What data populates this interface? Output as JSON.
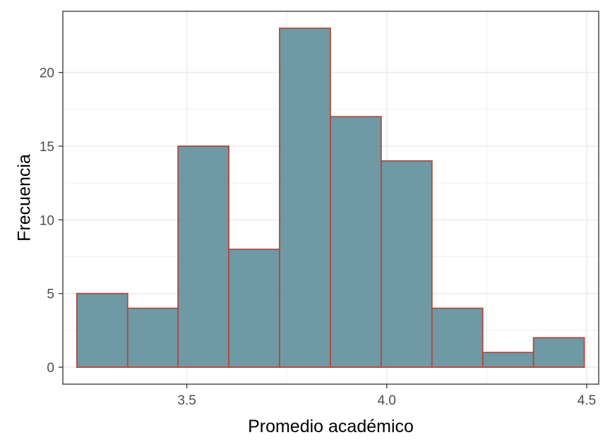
{
  "chart_data": {
    "type": "bar",
    "subtype": "histogram",
    "title": "",
    "xlabel": "Promedio académico",
    "ylabel": "Frecuencia",
    "bins": [
      {
        "start": 3.225,
        "end": 3.352,
        "count": 5
      },
      {
        "start": 3.352,
        "end": 3.478,
        "count": 4
      },
      {
        "start": 3.478,
        "end": 3.605,
        "count": 15
      },
      {
        "start": 3.605,
        "end": 3.732,
        "count": 8
      },
      {
        "start": 3.732,
        "end": 3.859,
        "count": 23
      },
      {
        "start": 3.859,
        "end": 3.986,
        "count": 17
      },
      {
        "start": 3.986,
        "end": 4.113,
        "count": 14
      },
      {
        "start": 4.113,
        "end": 4.24,
        "count": 4
      },
      {
        "start": 4.24,
        "end": 4.367,
        "count": 1
      },
      {
        "start": 4.367,
        "end": 4.494,
        "count": 2
      }
    ],
    "xlim": [
      3.19,
      4.53
    ],
    "ylim": [
      -1.15,
      24.15
    ],
    "xticks": [
      3.5,
      4.0,
      4.5
    ],
    "xtick_labels": [
      "3.5",
      "4.0",
      "4.5"
    ],
    "yticks": [
      0,
      5,
      10,
      15,
      20
    ],
    "ytick_labels": [
      "0",
      "5",
      "10",
      "15",
      "20"
    ],
    "grid": true,
    "legend": "none",
    "colors": {
      "bar_fill": "#5f8e9b",
      "bar_edge": "#b04a3a",
      "grid": "#ebebeb",
      "panel_border": "#333333"
    }
  }
}
